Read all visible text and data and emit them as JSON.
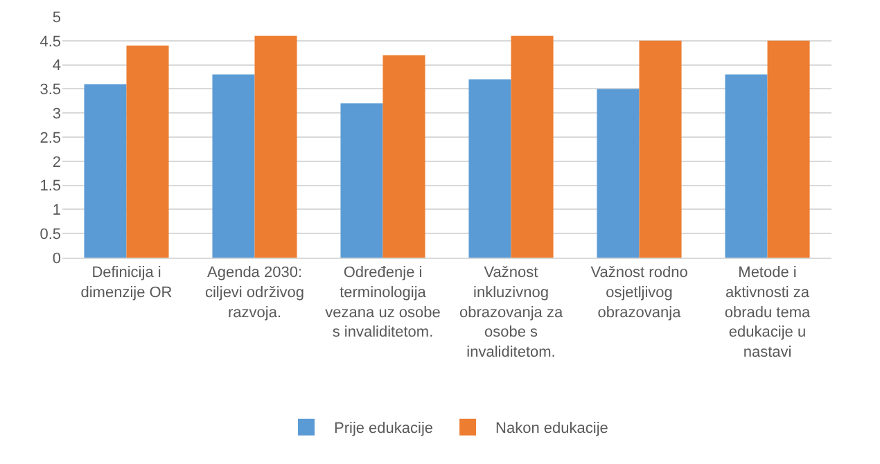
{
  "chart_data": {
    "type": "bar",
    "categories": [
      "Definicija i dimenzije OR",
      "Agenda 2030: ciljevi održivog razvoja.",
      "Određenje i terminologija vezana uz osobe s invaliditetom.",
      "Važnost inkluzivnog obrazovanja za osobe s invaliditetom.",
      "Važnost rodno osjetljivog obrazovanja",
      "Metode i aktivnosti za obradu tema edukacije u nastavi"
    ],
    "series": [
      {
        "name": "Prije edukacije",
        "color": "#5b9bd5",
        "values": [
          3.6,
          3.8,
          3.2,
          3.7,
          3.5,
          3.8
        ]
      },
      {
        "name": "Nakon edukacije",
        "color": "#ed7d31",
        "values": [
          4.4,
          4.6,
          4.2,
          4.6,
          4.5,
          4.5
        ]
      }
    ],
    "ylim": [
      0,
      5
    ],
    "yticks": [
      0,
      0.5,
      1,
      1.5,
      2,
      2.5,
      3,
      3.5,
      4,
      4.5,
      5
    ],
    "grid": "y",
    "legend": "bottom"
  }
}
